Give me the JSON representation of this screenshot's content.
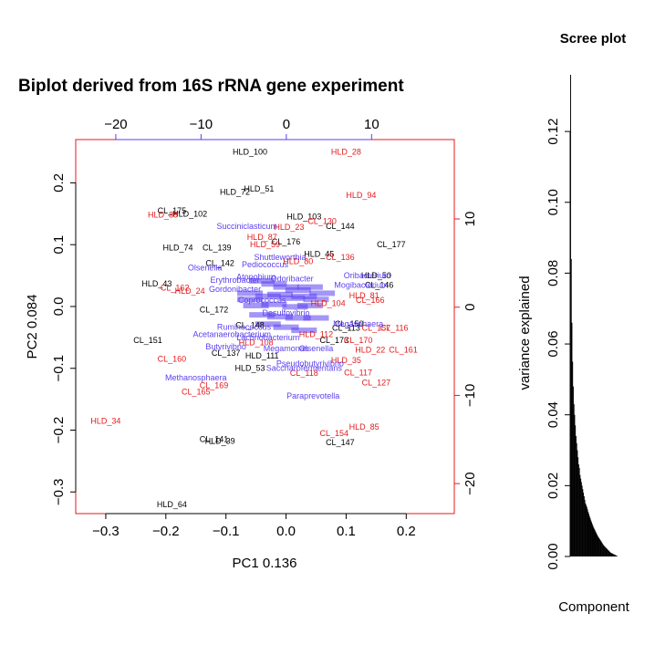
{
  "colors": {
    "sample_black": "#000000",
    "sample_red": "#e41a1c",
    "taxon": "#5a3ff0",
    "frame": "#e41a1c"
  },
  "chart_data": [
    {
      "type": "scatter",
      "title": "Biplot derived from 16S rRNA gene experiment",
      "xlabel": "PC1 0.136",
      "ylabel": "PC2 0.084",
      "xlim": [
        -0.35,
        0.28
      ],
      "ylim": [
        -0.335,
        0.27
      ],
      "x_ticks": [
        -0.3,
        -0.2,
        -0.1,
        0.0,
        0.1,
        0.2
      ],
      "x_tick_labels": [
        "−0.3",
        "−0.2",
        "−0.1",
        "0.0",
        "0.1",
        "0.2"
      ],
      "y_ticks": [
        -0.3,
        -0.2,
        -0.1,
        0.0,
        0.1,
        0.2
      ],
      "y_tick_labels": [
        "−0.3",
        "−0.2",
        "−0.1",
        "0.0",
        "0.1",
        "0.2"
      ],
      "top_ticks": [
        -20,
        -10,
        0,
        10
      ],
      "top_tick_labels": [
        "−20",
        "−10",
        "0",
        "10"
      ],
      "right_ticks": [
        -20,
        -10,
        0,
        10
      ],
      "right_tick_labels": [
        "−20",
        "−10",
        "0",
        "10"
      ],
      "top_lim": [
        -24.7,
        19.7
      ],
      "right_lim": [
        -23.4,
        19.0
      ],
      "grid": false,
      "series": [
        {
          "name": "",
          "color": "#000000",
          "points": [
            {
              "label": "HLD_100",
              "x": -0.06,
              "y": 0.25
            },
            {
              "label": "HLD_51",
              "x": -0.045,
              "y": 0.19
            },
            {
              "label": "HLD_72",
              "x": -0.085,
              "y": 0.185
            },
            {
              "label": "CL_175",
              "x": -0.19,
              "y": 0.155
            },
            {
              "label": "HLD_102",
              "x": -0.16,
              "y": 0.15
            },
            {
              "label": "HLD_103",
              "x": 0.03,
              "y": 0.145
            },
            {
              "label": "CL_144",
              "x": 0.09,
              "y": 0.13
            },
            {
              "label": "CL_176",
              "x": 0.0,
              "y": 0.105
            },
            {
              "label": "CL_177",
              "x": 0.175,
              "y": 0.1
            },
            {
              "label": "HLD_74",
              "x": -0.18,
              "y": 0.095
            },
            {
              "label": "CL_139",
              "x": -0.115,
              "y": 0.095
            },
            {
              "label": "HLD_45",
              "x": 0.055,
              "y": 0.085
            },
            {
              "label": "CL_142",
              "x": -0.11,
              "y": 0.07
            },
            {
              "label": "HLD_50",
              "x": 0.15,
              "y": 0.05
            },
            {
              "label": "CL_146",
              "x": 0.155,
              "y": 0.035
            },
            {
              "label": "HLD_43",
              "x": -0.215,
              "y": 0.037
            },
            {
              "label": "CL_172",
              "x": -0.12,
              "y": -0.005
            },
            {
              "label": "CL_148",
              "x": -0.06,
              "y": -0.03
            },
            {
              "label": "CL_150",
              "x": 0.105,
              "y": -0.028
            },
            {
              "label": "CL_113",
              "x": 0.1,
              "y": -0.035
            },
            {
              "label": "CL_151",
              "x": -0.23,
              "y": -0.055
            },
            {
              "label": "CL_173",
              "x": 0.08,
              "y": -0.055
            },
            {
              "label": "CL_137",
              "x": -0.1,
              "y": -0.075
            },
            {
              "label": "HLD_111",
              "x": -0.04,
              "y": -0.08
            },
            {
              "label": "HLD_53",
              "x": -0.06,
              "y": -0.1
            },
            {
              "label": "CL_141",
              "x": -0.12,
              "y": -0.215
            },
            {
              "label": "HLD_39",
              "x": -0.11,
              "y": -0.218
            },
            {
              "label": "CL_147",
              "x": 0.09,
              "y": -0.22
            },
            {
              "label": "HLD_64",
              "x": -0.19,
              "y": -0.32
            }
          ]
        },
        {
          "name": "",
          "color": "#e41a1c",
          "points": [
            {
              "label": "HLD_28",
              "x": 0.1,
              "y": 0.25
            },
            {
              "label": "HLD_94",
              "x": 0.125,
              "y": 0.18
            },
            {
              "label": "HLD_89",
              "x": -0.205,
              "y": 0.148
            },
            {
              "label": "CL_130",
              "x": 0.06,
              "y": 0.138
            },
            {
              "label": "HLD_23",
              "x": 0.005,
              "y": 0.128
            },
            {
              "label": "HLD_87",
              "x": -0.04,
              "y": 0.112
            },
            {
              "label": "HLD_59",
              "x": -0.035,
              "y": 0.1
            },
            {
              "label": "CL_136",
              "x": 0.09,
              "y": 0.08
            },
            {
              "label": "HLD_80",
              "x": 0.02,
              "y": 0.073
            },
            {
              "label": "CL_162",
              "x": -0.185,
              "y": 0.03
            },
            {
              "label": "HLD_24",
              "x": -0.16,
              "y": 0.025
            },
            {
              "label": "HLD_104",
              "x": 0.07,
              "y": 0.005
            },
            {
              "label": "HLD_81",
              "x": 0.13,
              "y": 0.018
            },
            {
              "label": "CL_166",
              "x": 0.14,
              "y": 0.01
            },
            {
              "label": "CL_116",
              "x": 0.18,
              "y": -0.035
            },
            {
              "label": "CL_157",
              "x": 0.15,
              "y": -0.035
            },
            {
              "label": "HLD_112",
              "x": 0.05,
              "y": -0.045
            },
            {
              "label": "HLD_108",
              "x": -0.05,
              "y": -0.058
            },
            {
              "label": "CL_170",
              "x": 0.12,
              "y": -0.055
            },
            {
              "label": "HLD_22",
              "x": 0.14,
              "y": -0.07
            },
            {
              "label": "CL_161",
              "x": 0.195,
              "y": -0.07
            },
            {
              "label": "CL_160",
              "x": -0.19,
              "y": -0.085
            },
            {
              "label": "HLD_35",
              "x": 0.1,
              "y": -0.087
            },
            {
              "label": "CL_118",
              "x": 0.03,
              "y": -0.108
            },
            {
              "label": "CL_117",
              "x": 0.12,
              "y": -0.107
            },
            {
              "label": "CL_127",
              "x": 0.15,
              "y": -0.123
            },
            {
              "label": "CL_169",
              "x": -0.12,
              "y": -0.128
            },
            {
              "label": "CL_165",
              "x": -0.15,
              "y": -0.138
            },
            {
              "label": "HLD_34",
              "x": -0.3,
              "y": -0.185
            },
            {
              "label": "HLD_85",
              "x": 0.13,
              "y": -0.195
            },
            {
              "label": "CL_154",
              "x": 0.08,
              "y": -0.205
            }
          ]
        },
        {
          "name": "",
          "color": "#5a3ff0",
          "points": [
            {
              "label": "Succiniclasticum",
              "x": -0.065,
              "y": 0.13
            },
            {
              "label": "Shuttleworthia",
              "x": -0.01,
              "y": 0.08
            },
            {
              "label": "Pediococcus",
              "x": -0.035,
              "y": 0.068
            },
            {
              "label": "Olsenella",
              "x": -0.135,
              "y": 0.063
            },
            {
              "label": "Atopobium",
              "x": -0.05,
              "y": 0.048
            },
            {
              "label": "Odoribacter",
              "x": 0.01,
              "y": 0.045
            },
            {
              "label": "Oribacterium",
              "x": 0.135,
              "y": 0.05
            },
            {
              "label": "Erythrobacter",
              "x": -0.085,
              "y": 0.043
            },
            {
              "label": "Gordonibacter",
              "x": -0.085,
              "y": 0.028
            },
            {
              "label": "Mogibacterium",
              "x": 0.125,
              "y": 0.035
            },
            {
              "label": "Coprococcus",
              "x": -0.04,
              "y": 0.01
            },
            {
              "label": "Desulfovibrio",
              "x": 0.0,
              "y": -0.01
            },
            {
              "label": "Megasphaera",
              "x": 0.12,
              "y": -0.028
            },
            {
              "label": "Ruminococcus",
              "x": -0.07,
              "y": -0.033
            },
            {
              "label": "Acetanaerobacterium",
              "x": -0.09,
              "y": -0.045
            },
            {
              "label": "Lachnobacterium",
              "x": -0.03,
              "y": -0.05
            },
            {
              "label": "Butyrivibrio",
              "x": -0.1,
              "y": -0.065
            },
            {
              "label": "Megamonas",
              "x": 0.0,
              "y": -0.068
            },
            {
              "label": "Olsenella",
              "x": 0.05,
              "y": -0.068
            },
            {
              "label": "Pseudobutyrivibrio",
              "x": 0.04,
              "y": -0.092
            },
            {
              "label": "Saccharofermentans",
              "x": 0.03,
              "y": -0.1
            },
            {
              "label": "Methanosphaera",
              "x": -0.15,
              "y": -0.115
            },
            {
              "label": "Paraprevotella",
              "x": 0.045,
              "y": -0.145
            }
          ],
          "unlabeled_cluster": [
            [
              -0.04,
              0.04
            ],
            [
              -0.02,
              0.035
            ],
            [
              0.0,
              0.03
            ],
            [
              0.02,
              0.025
            ],
            [
              0.04,
              0.03
            ],
            [
              -0.06,
              0.02
            ],
            [
              -0.03,
              0.015
            ],
            [
              -0.01,
              0.018
            ],
            [
              0.01,
              0.012
            ],
            [
              0.03,
              0.015
            ],
            [
              0.05,
              0.01
            ],
            [
              -0.05,
              0.0
            ],
            [
              -0.02,
              0.002
            ],
            [
              0.015,
              -0.002
            ],
            [
              0.04,
              0.0
            ],
            [
              -0.04,
              -0.015
            ],
            [
              -0.01,
              -0.018
            ],
            [
              0.02,
              -0.02
            ],
            [
              0.05,
              -0.02
            ],
            [
              -0.03,
              -0.03
            ],
            [
              0.0,
              -0.035
            ],
            [
              0.03,
              -0.04
            ],
            [
              -0.06,
              0.01
            ],
            [
              0.06,
              0.02
            ]
          ]
        }
      ]
    },
    {
      "type": "bar",
      "title": "Scree plot",
      "xlabel": "Component",
      "ylabel": "variance explained",
      "ylim": [
        0,
        0.136
      ],
      "y_ticks": [
        0.0,
        0.02,
        0.04,
        0.06,
        0.08,
        0.1,
        0.12
      ],
      "y_tick_labels": [
        "0.00",
        "0.02",
        "0.04",
        "0.06",
        "0.08",
        "0.10",
        "0.12"
      ],
      "values": [
        0.136,
        0.084,
        0.066,
        0.055,
        0.048,
        0.043,
        0.04,
        0.037,
        0.034,
        0.032,
        0.03,
        0.028,
        0.026,
        0.025,
        0.023,
        0.022,
        0.021,
        0.02,
        0.019,
        0.018,
        0.017,
        0.016,
        0.015,
        0.0145,
        0.014,
        0.0133,
        0.0126,
        0.012,
        0.0114,
        0.0108,
        0.0102,
        0.0097,
        0.0092,
        0.0087,
        0.0082,
        0.0078,
        0.0074,
        0.007,
        0.0066,
        0.0062,
        0.0058,
        0.0055,
        0.0052,
        0.0049,
        0.0046,
        0.0043,
        0.004,
        0.0037,
        0.0034,
        0.0031,
        0.0029,
        0.0027,
        0.0025,
        0.0023,
        0.0021,
        0.0019,
        0.0017,
        0.0015,
        0.0013,
        0.0011,
        0.001,
        0.0009,
        0.0008,
        0.0007,
        0.0006,
        0.0005,
        0.0004,
        0.0003,
        0.0002,
        0.0001
      ]
    }
  ]
}
